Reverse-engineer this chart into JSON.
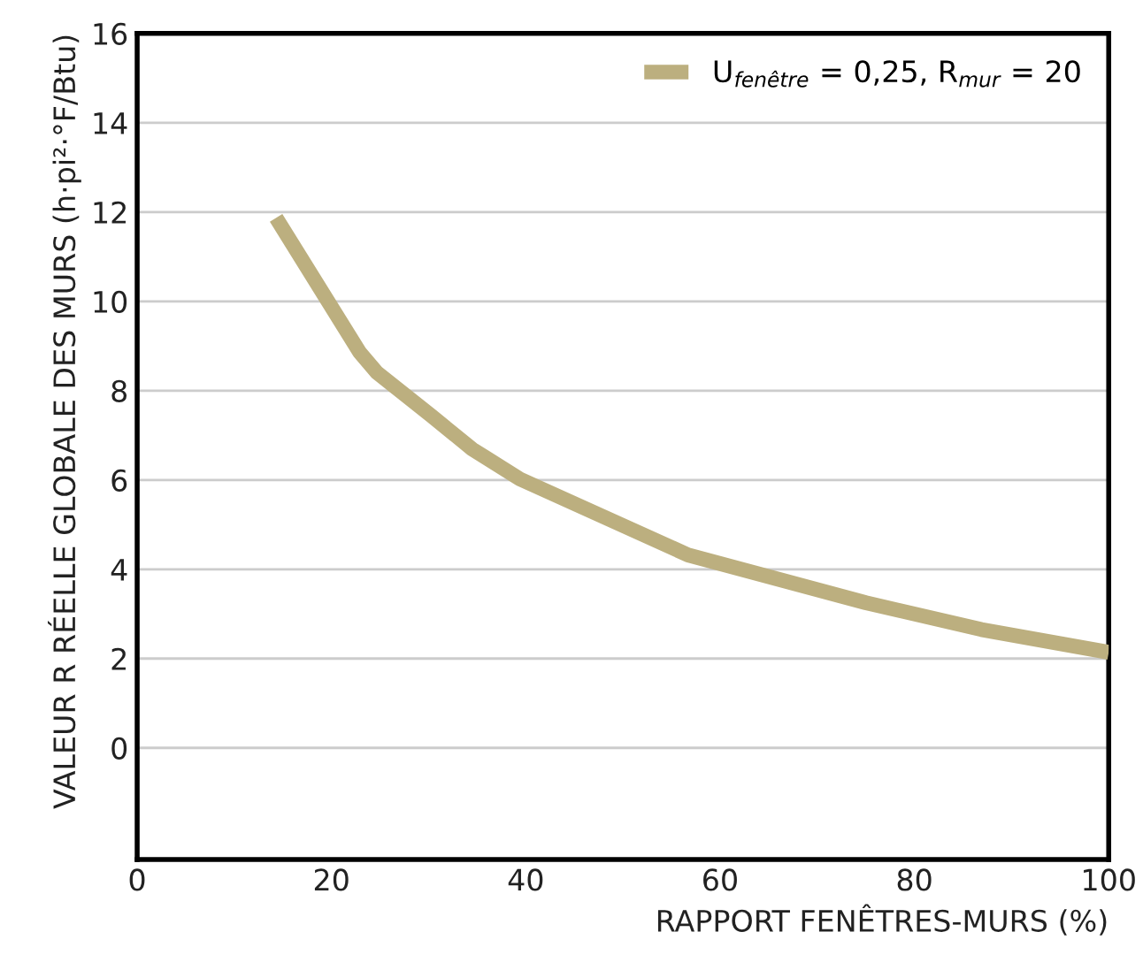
{
  "chart_data": {
    "type": "line",
    "xlabel": "RAPPORT FENÊTRES-MURS (%)",
    "ylabel": "VALEUR R RÉELLE GLOBALE DES MURS (h·pi²·°F/Btu)",
    "xlim": [
      0,
      100
    ],
    "xticks": [
      0,
      20,
      40,
      60,
      80,
      100
    ],
    "ylim": [
      -2.5,
      16
    ],
    "yticks": [
      0,
      2,
      4,
      6,
      8,
      10,
      12,
      14,
      16
    ],
    "grid": "y",
    "legend": "top right",
    "marker": "none",
    "line_style": "solid",
    "series": [
      {
        "name": "U$_{fenêtre}$ = 0,25, R$_{mur}$ = 20",
        "color": "#bcaf7f",
        "x": [
          14.3,
          22.9,
          24.7,
          30.2,
          34.5,
          39.4,
          56.7,
          75.0,
          86.9,
          100
        ],
        "values": [
          11.87,
          8.86,
          8.4,
          7.45,
          6.69,
          6.02,
          4.32,
          3.25,
          2.65,
          2.14
        ]
      }
    ]
  }
}
